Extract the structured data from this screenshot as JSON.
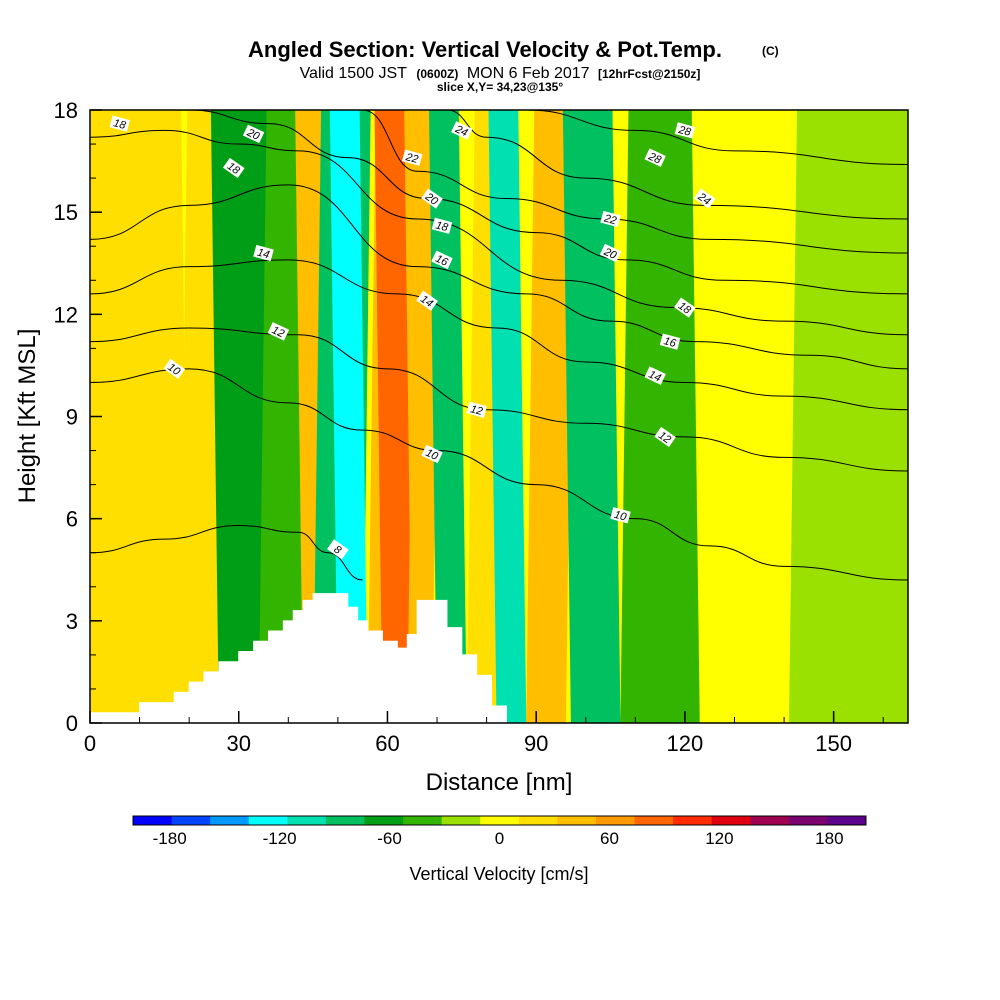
{
  "title": {
    "main": "Angled Section: Vertical Velocity & Pot.Temp.",
    "main_suffix": "(C)",
    "valid_prefix": "Valid 1500 JST",
    "valid_zulu": "(0600Z)",
    "valid_date": "MON 6 Feb 2017",
    "forecast": "[12hrFcst@2150z]",
    "slice": "slice X,Y= 34,23@135°"
  },
  "chart_data": {
    "type": "heatmap",
    "xlabel": "Distance [nm]",
    "ylabel": "Height [Kft MSL]",
    "xlim": [
      0,
      165
    ],
    "ylim": [
      0,
      18
    ],
    "x_ticks": [
      0,
      30,
      60,
      90,
      120,
      150
    ],
    "y_ticks": [
      0,
      3,
      6,
      9,
      12,
      15,
      18
    ],
    "colorbar": {
      "title": "Vertical Velocity [cm/s]",
      "ticks": [
        -180,
        -120,
        -60,
        0,
        60,
        120,
        180
      ],
      "range": [
        -200,
        200
      ],
      "colors": [
        "#0000ff",
        "#0044ff",
        "#0099ff",
        "#00ffff",
        "#00e0b0",
        "#00c060",
        "#009e16",
        "#33b400",
        "#9ae000",
        "#ffff00",
        "#ffdf00",
        "#ffbe00",
        "#ff9a00",
        "#ff6600",
        "#ff2a00",
        "#e00010",
        "#a00050",
        "#7a0070",
        "#5a008a"
      ]
    },
    "velocity_columns": [
      {
        "x": 0,
        "w": 20,
        "value": 15
      },
      {
        "x": 18,
        "w": 14,
        "value": 30
      },
      {
        "x": 26,
        "w": 16,
        "value": -60
      },
      {
        "x": 34,
        "w": 10,
        "value": -40
      },
      {
        "x": 43,
        "w": 8,
        "value": 35
      },
      {
        "x": 45,
        "w": 10,
        "value": -80
      },
      {
        "x": 50,
        "w": 6,
        "value": -120
      },
      {
        "x": 56,
        "w": 8,
        "value": 40
      },
      {
        "x": 59,
        "w": 6,
        "value": 90
      },
      {
        "x": 64,
        "w": 5,
        "value": 40
      },
      {
        "x": 70,
        "w": 6,
        "value": -90
      },
      {
        "x": 76,
        "w": 8,
        "value": 20
      },
      {
        "x": 82,
        "w": 6,
        "value": -110
      },
      {
        "x": 88,
        "w": 8,
        "value": 40
      },
      {
        "x": 97,
        "w": 10,
        "value": -80
      },
      {
        "x": 107,
        "w": 16,
        "value": -40
      },
      {
        "x": 123,
        "w": 20,
        "value": -10
      },
      {
        "x": 141,
        "w": 24,
        "value": -30
      }
    ],
    "terrain": [
      [
        0,
        0.3
      ],
      [
        10,
        0.3
      ],
      [
        10,
        0.6
      ],
      [
        17,
        0.6
      ],
      [
        17,
        0.9
      ],
      [
        20,
        0.9
      ],
      [
        20,
        1.2
      ],
      [
        23,
        1.2
      ],
      [
        23,
        1.5
      ],
      [
        26,
        1.5
      ],
      [
        26,
        1.8
      ],
      [
        30,
        1.8
      ],
      [
        30,
        2.1
      ],
      [
        33,
        2.1
      ],
      [
        33,
        2.4
      ],
      [
        36,
        2.4
      ],
      [
        36,
        2.7
      ],
      [
        39,
        2.7
      ],
      [
        39,
        3.0
      ],
      [
        41,
        3.0
      ],
      [
        41,
        3.3
      ],
      [
        43,
        3.3
      ],
      [
        43,
        3.6
      ],
      [
        45,
        3.6
      ],
      [
        45,
        3.8
      ],
      [
        52,
        3.8
      ],
      [
        52,
        3.4
      ],
      [
        54,
        3.4
      ],
      [
        54,
        3.0
      ],
      [
        56,
        3.0
      ],
      [
        56,
        2.7
      ],
      [
        59,
        2.7
      ],
      [
        59,
        2.4
      ],
      [
        62,
        2.4
      ],
      [
        62,
        2.2
      ],
      [
        64,
        2.2
      ],
      [
        64,
        2.6
      ],
      [
        66,
        2.6
      ],
      [
        66,
        3.6
      ],
      [
        72,
        3.6
      ],
      [
        72,
        2.8
      ],
      [
        75,
        2.8
      ],
      [
        75,
        2.0
      ],
      [
        78,
        2.0
      ],
      [
        78,
        1.4
      ],
      [
        81,
        1.4
      ],
      [
        81,
        0.5
      ],
      [
        84,
        0.5
      ],
      [
        84,
        0
      ]
    ],
    "contours": [
      {
        "level": 8,
        "points": [
          [
            0,
            5.0
          ],
          [
            15,
            5.4
          ],
          [
            30,
            5.8
          ],
          [
            42,
            5.6
          ],
          [
            48,
            5.0
          ],
          [
            55,
            4.2
          ]
        ]
      },
      {
        "level": 10,
        "points": [
          [
            0,
            10.0
          ],
          [
            20,
            10.4
          ],
          [
            40,
            9.4
          ],
          [
            55,
            8.6
          ],
          [
            70,
            8.0
          ],
          [
            90,
            7.0
          ],
          [
            110,
            6.0
          ],
          [
            125,
            5.2
          ],
          [
            140,
            4.6
          ],
          [
            165,
            4.2
          ]
        ]
      },
      {
        "level": 12,
        "points": [
          [
            0,
            11.2
          ],
          [
            20,
            11.6
          ],
          [
            42,
            11.4
          ],
          [
            60,
            10.4
          ],
          [
            80,
            9.2
          ],
          [
            100,
            8.8
          ],
          [
            120,
            8.4
          ],
          [
            140,
            7.8
          ],
          [
            165,
            7.4
          ]
        ]
      },
      {
        "level": 14,
        "points": [
          [
            0,
            12.6
          ],
          [
            20,
            13.4
          ],
          [
            40,
            13.6
          ],
          [
            62,
            12.6
          ],
          [
            82,
            11.6
          ],
          [
            100,
            10.6
          ],
          [
            120,
            10.0
          ],
          [
            140,
            9.6
          ],
          [
            165,
            9.2
          ]
        ]
      },
      {
        "level": 16,
        "points": [
          [
            0,
            14.2
          ],
          [
            20,
            15.2
          ],
          [
            40,
            15.8
          ],
          [
            66,
            13.4
          ],
          [
            88,
            12.6
          ],
          [
            105,
            11.8
          ],
          [
            122,
            11.2
          ],
          [
            145,
            10.8
          ],
          [
            165,
            10.4
          ]
        ]
      },
      {
        "level": 18,
        "points": [
          [
            0,
            17.2
          ],
          [
            15,
            17.4
          ],
          [
            30,
            17.0
          ],
          [
            42,
            16.8
          ],
          [
            66,
            14.8
          ],
          [
            95,
            13.0
          ],
          [
            118,
            12.2
          ],
          [
            140,
            11.8
          ],
          [
            165,
            11.4
          ]
        ]
      },
      {
        "level": 20,
        "points": [
          [
            20,
            18.0
          ],
          [
            36,
            17.6
          ],
          [
            52,
            16.6
          ],
          [
            68,
            15.4
          ],
          [
            90,
            14.4
          ],
          [
            108,
            13.6
          ],
          [
            128,
            13.0
          ],
          [
            165,
            12.6
          ]
        ]
      },
      {
        "level": 22,
        "points": [
          [
            55,
            18.0
          ],
          [
            66,
            16.2
          ],
          [
            84,
            15.4
          ],
          [
            104,
            14.8
          ],
          [
            125,
            14.2
          ],
          [
            165,
            13.8
          ]
        ]
      },
      {
        "level": 24,
        "points": [
          [
            72,
            18.0
          ],
          [
            80,
            17.2
          ],
          [
            100,
            16.0
          ],
          [
            124,
            15.2
          ],
          [
            165,
            14.8
          ]
        ]
      },
      {
        "level": 28,
        "points": [
          [
            88,
            18.0
          ],
          [
            110,
            17.4
          ],
          [
            130,
            16.8
          ],
          [
            165,
            16.4
          ]
        ]
      }
    ],
    "contour_labels": [
      {
        "text": "18",
        "x": 6,
        "y": 17.6
      },
      {
        "text": "20",
        "x": 33,
        "y": 17.3
      },
      {
        "text": "18",
        "x": 29,
        "y": 16.3
      },
      {
        "text": "14",
        "x": 35,
        "y": 13.8
      },
      {
        "text": "12",
        "x": 38,
        "y": 11.5
      },
      {
        "text": "10",
        "x": 17,
        "y": 10.4
      },
      {
        "text": "22",
        "x": 65,
        "y": 16.6
      },
      {
        "text": "24",
        "x": 75,
        "y": 17.4
      },
      {
        "text": "20",
        "x": 69,
        "y": 15.4
      },
      {
        "text": "18",
        "x": 71,
        "y": 14.6
      },
      {
        "text": "16",
        "x": 71,
        "y": 13.6
      },
      {
        "text": "14",
        "x": 68,
        "y": 12.4
      },
      {
        "text": "12",
        "x": 78,
        "y": 9.2
      },
      {
        "text": "10",
        "x": 69,
        "y": 7.9
      },
      {
        "text": "8",
        "x": 50,
        "y": 5.1
      },
      {
        "text": "28",
        "x": 120,
        "y": 17.4
      },
      {
        "text": "28",
        "x": 114,
        "y": 16.6
      },
      {
        "text": "24",
        "x": 124,
        "y": 15.4
      },
      {
        "text": "22",
        "x": 105,
        "y": 14.8
      },
      {
        "text": "20",
        "x": 105,
        "y": 13.8
      },
      {
        "text": "18",
        "x": 120,
        "y": 12.2
      },
      {
        "text": "16",
        "x": 117,
        "y": 11.2
      },
      {
        "text": "14",
        "x": 114,
        "y": 10.2
      },
      {
        "text": "12",
        "x": 116,
        "y": 8.4
      },
      {
        "text": "10",
        "x": 107,
        "y": 6.1
      }
    ]
  }
}
